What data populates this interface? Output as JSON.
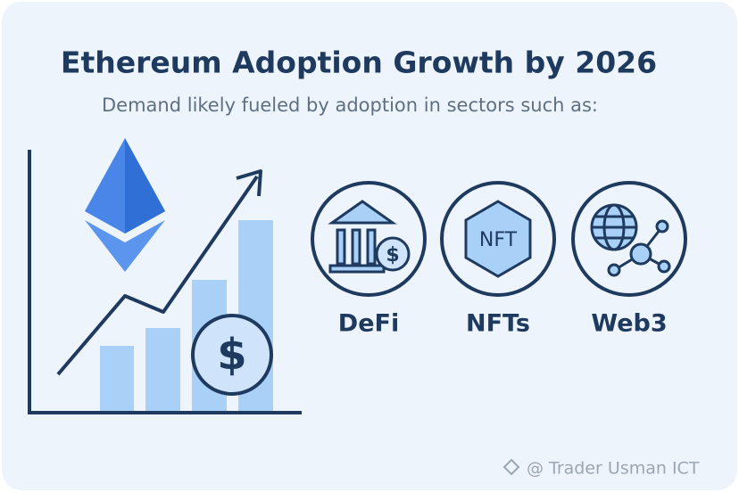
{
  "header": {
    "title": "Ethereum Adoption Growth by 2026",
    "subtitle": "Demand likely fueled by adoption in sectors such as:"
  },
  "icons": {
    "dollar": "$",
    "nft_badge": "NFT"
  },
  "sectors": [
    {
      "label": "DeFi"
    },
    {
      "label": "NFTs"
    },
    {
      "label": "Web3"
    }
  ],
  "watermark": "@ Trader Usman ICT"
}
